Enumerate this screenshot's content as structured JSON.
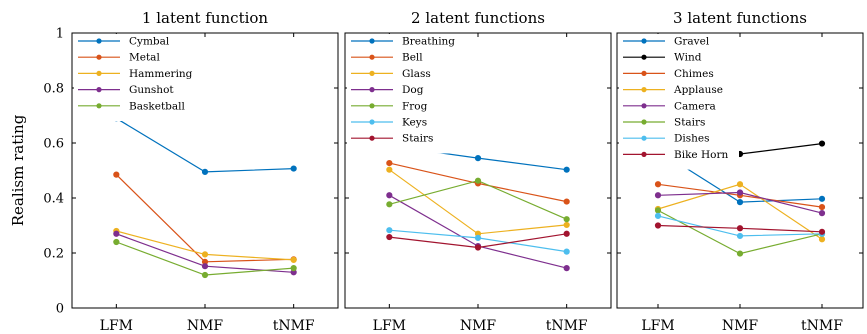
{
  "chart_data": [
    {
      "type": "line",
      "title": "1 latent function",
      "ylabel": "Realism rating",
      "categories": [
        "LFM",
        "NMF",
        "tNMF"
      ],
      "ylim": [
        0,
        1
      ],
      "yticks": [
        "0",
        "0.2",
        "0.4",
        "0.6",
        "0.8",
        "1"
      ],
      "legend": "top-left",
      "series": [
        {
          "name": "Cymbal",
          "color": "#0072BD",
          "values": [
            0.69,
            0.495,
            0.507
          ]
        },
        {
          "name": "Metal",
          "color": "#D95319",
          "values": [
            0.485,
            0.168,
            0.177
          ]
        },
        {
          "name": "Hammering",
          "color": "#EDB120",
          "values": [
            0.28,
            0.195,
            0.175
          ]
        },
        {
          "name": "Gunshot",
          "color": "#7E2F8E",
          "values": [
            0.27,
            0.152,
            0.13
          ]
        },
        {
          "name": "Basketball",
          "color": "#77AC30",
          "values": [
            0.24,
            0.12,
            0.145
          ]
        }
      ]
    },
    {
      "type": "line",
      "title": "2 latent functions",
      "categories": [
        "LFM",
        "NMF",
        "tNMF"
      ],
      "ylim": [
        0,
        1
      ],
      "legend": "top-left",
      "series": [
        {
          "name": "Breathing",
          "color": "#0072BD",
          "values": [
            0.59,
            0.545,
            0.503
          ]
        },
        {
          "name": "Bell",
          "color": "#D95319",
          "values": [
            0.527,
            0.453,
            0.387
          ]
        },
        {
          "name": "Glass",
          "color": "#EDB120",
          "values": [
            0.503,
            0.27,
            0.302
          ]
        },
        {
          "name": "Dog",
          "color": "#7E2F8E",
          "values": [
            0.41,
            0.225,
            0.145
          ]
        },
        {
          "name": "Frog",
          "color": "#77AC30",
          "values": [
            0.377,
            0.463,
            0.323
          ]
        },
        {
          "name": "Keys",
          "color": "#4DBEEE",
          "values": [
            0.283,
            0.255,
            0.205
          ]
        },
        {
          "name": "Stairs",
          "color": "#A2142F",
          "values": [
            0.258,
            0.22,
            0.27
          ]
        }
      ]
    },
    {
      "type": "line",
      "title": "3 latent functions",
      "categories": [
        "LFM",
        "NMF",
        "tNMF"
      ],
      "ylim": [
        0,
        1
      ],
      "legend": "top-left",
      "series": [
        {
          "name": "Gravel",
          "color": "#0072BD",
          "values": [
            0.573,
            0.385,
            0.397
          ]
        },
        {
          "name": "Wind",
          "color": "#000000",
          "values": [
            0.548,
            0.56,
            0.598
          ]
        },
        {
          "name": "Chimes",
          "color": "#D95319",
          "values": [
            0.45,
            0.41,
            0.367
          ]
        },
        {
          "name": "Applause",
          "color": "#EDB120",
          "values": [
            0.36,
            0.45,
            0.25
          ]
        },
        {
          "name": "Camera",
          "color": "#7E2F8E",
          "values": [
            0.41,
            0.42,
            0.345
          ]
        },
        {
          "name": "Stairs",
          "color": "#77AC30",
          "values": [
            0.355,
            0.198,
            0.27
          ]
        },
        {
          "name": "Dishes",
          "color": "#4DBEEE",
          "values": [
            0.335,
            0.262,
            0.27
          ]
        },
        {
          "name": "Bike Horn",
          "color": "#A2142F",
          "values": [
            0.3,
            0.29,
            0.277
          ]
        }
      ]
    }
  ]
}
